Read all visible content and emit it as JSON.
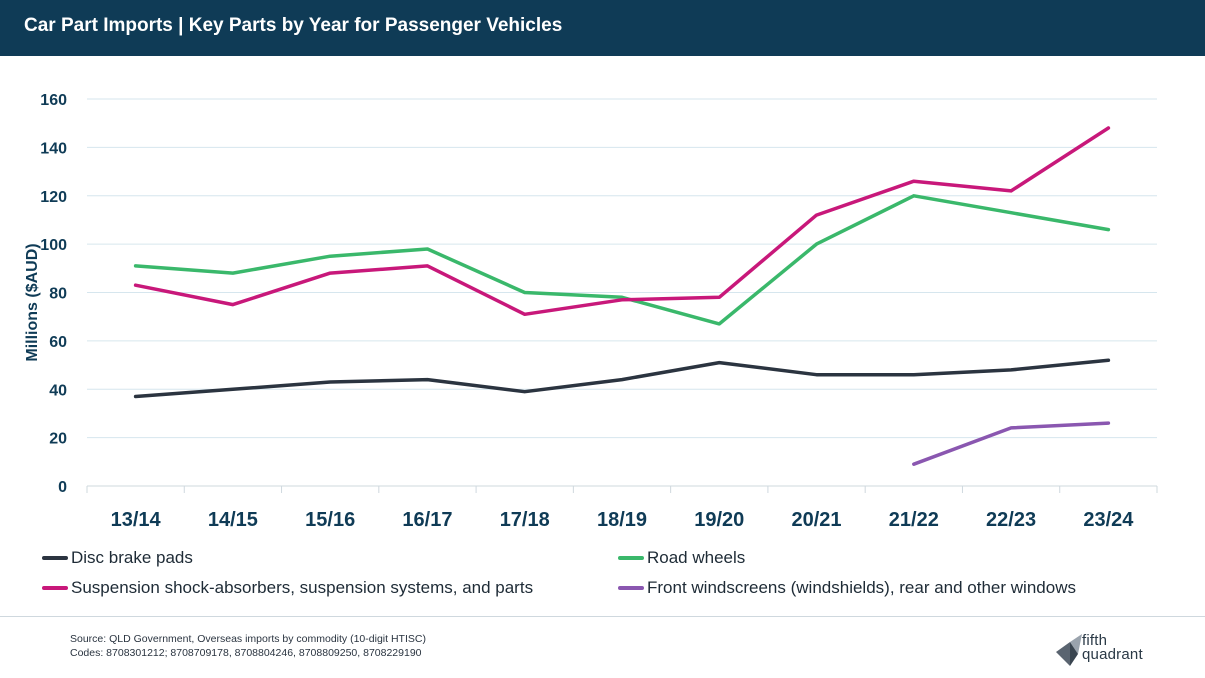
{
  "header": {
    "title": "Car Part Imports | Key Parts by Year for Passenger Vehicles"
  },
  "chart_data": {
    "type": "line",
    "title": "Car Part Imports | Key Parts by Year for Passenger Vehicles",
    "ylabel": "Millions ($AUD)",
    "xlabel": "",
    "ylim": [
      0,
      160
    ],
    "yticks": [
      0,
      20,
      40,
      60,
      80,
      100,
      120,
      140,
      160
    ],
    "grid": true,
    "legend_position": "bottom",
    "categories": [
      "13/14",
      "14/15",
      "15/16",
      "16/17",
      "17/18",
      "18/19",
      "19/20",
      "20/21",
      "21/22",
      "22/23",
      "23/24"
    ],
    "series": [
      {
        "name": "Disc brake pads",
        "color": "#2b3440",
        "values": [
          37,
          40,
          43,
          44,
          39,
          44,
          51,
          46,
          46,
          48,
          52
        ]
      },
      {
        "name": "Road wheels",
        "color": "#3ab86b",
        "values": [
          91,
          88,
          95,
          98,
          80,
          78,
          67,
          100,
          120,
          113,
          106
        ]
      },
      {
        "name": "Suspension shock-absorbers, suspension systems, and parts",
        "color": "#c8187a",
        "values": [
          83,
          75,
          88,
          91,
          71,
          77,
          78,
          112,
          126,
          122,
          148
        ]
      },
      {
        "name": "Front windscreens (windshields), rear and other windows",
        "color": "#8a57b0",
        "values": [
          null,
          null,
          null,
          null,
          null,
          null,
          null,
          null,
          9,
          24,
          26
        ]
      }
    ]
  },
  "footer": {
    "source": "Source: QLD Government, Overseas imports by commodity (10-digit HTISC)",
    "codes": "Codes: 8708301212; 8708709178, 8708804246, 8708809250, 8708229190"
  },
  "logo": {
    "line1": "fifth",
    "line2": "quadrant",
    "icon": "fifth-quadrant-logo-icon"
  }
}
